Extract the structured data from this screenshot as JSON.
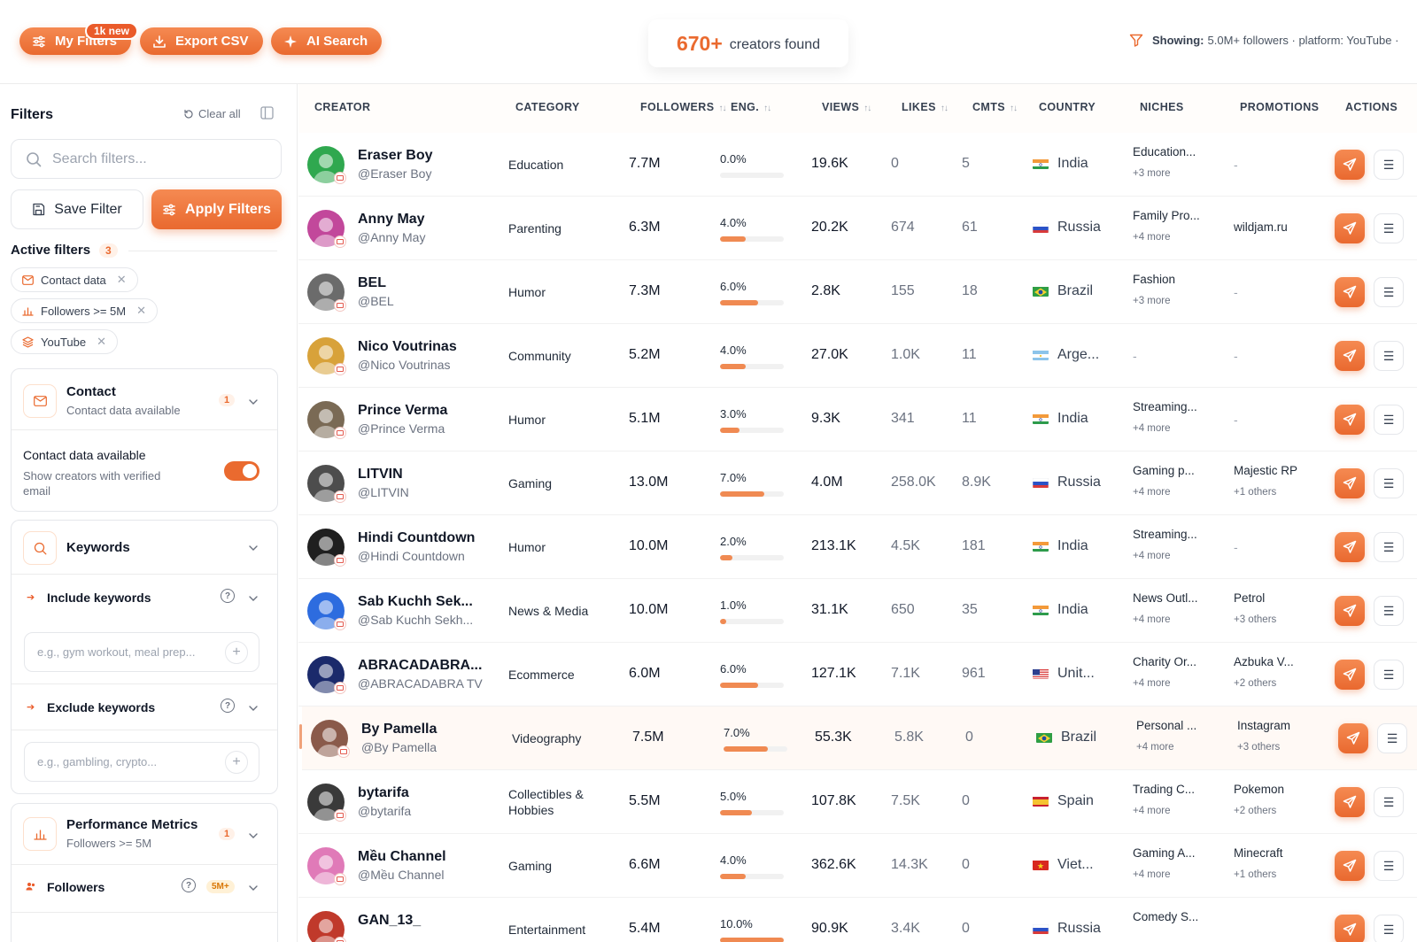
{
  "toolbar": {
    "my_filters_label": "My Filters",
    "new_badge": "1k new",
    "export_label": "Export CSV",
    "ai_search_label": "AI Search"
  },
  "summary": {
    "count": "670+",
    "label": "creators found",
    "showing_label": "Showing:",
    "showing_value": "5.0M+ followers · platform: YouTube ·"
  },
  "sidebar": {
    "title": "Filters",
    "clear_all": "Clear all",
    "search_placeholder": "Search filters...",
    "save_filter": "Save Filter",
    "apply_filters": "Apply Filters",
    "active_filters_label": "Active filters",
    "active_filters_count": "3",
    "chips": [
      "Contact data",
      "Followers >= 5M",
      "YouTube"
    ],
    "contact": {
      "title": "Contact",
      "subtitle": "Contact data available",
      "badge": "1",
      "toggle_title": "Contact data available",
      "toggle_desc": "Show creators with verified email",
      "toggle_on": true
    },
    "keywords": {
      "title": "Keywords",
      "include_label": "Include keywords",
      "include_placeholder": "e.g., gym workout, meal prep...",
      "exclude_label": "Exclude keywords",
      "exclude_placeholder": "e.g., gambling, crypto..."
    },
    "performance": {
      "title": "Performance Metrics",
      "subtitle": "Followers >= 5M",
      "badge": "1",
      "followers_label": "Followers",
      "followers_badge": "5M+"
    }
  },
  "table": {
    "columns": {
      "creator": "CREATOR",
      "category": "CATEGORY",
      "followers": "FOLLOWERS",
      "eng": "ENG.",
      "views": "VIEWS",
      "likes": "LIKES",
      "cmts": "CMTS",
      "country": "COUNTRY",
      "niches": "NICHES",
      "promotions": "PROMOTIONS",
      "actions": "ACTIONS"
    },
    "accent": "#ea6a2f",
    "rows": [
      {
        "name": "Eraser Boy",
        "handle": "@Eraser Boy",
        "category": "Education",
        "followers": "7.7M",
        "eng": "0.0%",
        "eng_value": 0.0,
        "views": "19.6K",
        "likes": "0",
        "cmts": "5",
        "country": "India",
        "flag": "in",
        "niche": "Education...",
        "niche_more": "+3 more",
        "promo": "-",
        "promo_more": "",
        "avatar_color": "#2fa84f"
      },
      {
        "name": "Anny May",
        "handle": "@Anny May",
        "category": "Parenting",
        "followers": "6.3M",
        "eng": "4.0%",
        "eng_value": 4.0,
        "views": "20.2K",
        "likes": "674",
        "cmts": "61",
        "country": "Russia",
        "flag": "ru",
        "niche": "Family Pro...",
        "niche_more": "+4 more",
        "promo": "wildjam.ru",
        "promo_more": "",
        "avatar_color": "#c2489b"
      },
      {
        "name": "BEL",
        "handle": "@BEL",
        "category": "Humor",
        "followers": "7.3M",
        "eng": "6.0%",
        "eng_value": 6.0,
        "views": "2.8K",
        "likes": "155",
        "cmts": "18",
        "country": "Brazil",
        "flag": "br",
        "niche": "Fashion",
        "niche_more": "+3 more",
        "promo": "-",
        "promo_more": "",
        "avatar_color": "#6b6b6b"
      },
      {
        "name": "Nico Voutrinas",
        "handle": "@Nico Voutrinas",
        "category": "Community",
        "followers": "5.2M",
        "eng": "4.0%",
        "eng_value": 4.0,
        "views": "27.0K",
        "likes": "1.0K",
        "cmts": "11",
        "country": "Arge...",
        "flag": "ar",
        "niche": "-",
        "niche_more": "",
        "promo": "-",
        "promo_more": "",
        "avatar_color": "#d8a23a"
      },
      {
        "name": "Prince Verma",
        "handle": "@Prince Verma",
        "category": "Humor",
        "followers": "5.1M",
        "eng": "3.0%",
        "eng_value": 3.0,
        "views": "9.3K",
        "likes": "341",
        "cmts": "11",
        "country": "India",
        "flag": "in",
        "niche": "Streaming...",
        "niche_more": "+4 more",
        "promo": "-",
        "promo_more": "",
        "avatar_color": "#7a6a55"
      },
      {
        "name": "LITVIN",
        "handle": "@LITVIN",
        "category": "Gaming",
        "followers": "13.0M",
        "eng": "7.0%",
        "eng_value": 7.0,
        "views": "4.0M",
        "likes": "258.0K",
        "cmts": "8.9K",
        "country": "Russia",
        "flag": "ru",
        "niche": "Gaming p...",
        "niche_more": "+4 more",
        "promo": "Majestic RP",
        "promo_more": "+1 others",
        "avatar_color": "#4d4d4d"
      },
      {
        "name": "Hindi Countdown",
        "handle": "@Hindi Countdown",
        "category": "Humor",
        "followers": "10.0M",
        "eng": "2.0%",
        "eng_value": 2.0,
        "views": "213.1K",
        "likes": "4.5K",
        "cmts": "181",
        "country": "India",
        "flag": "in",
        "niche": "Streaming...",
        "niche_more": "+4 more",
        "promo": "-",
        "promo_more": "",
        "avatar_color": "#1f1f1f"
      },
      {
        "name": "Sab Kuchh Sek...",
        "handle": "@Sab Kuchh Sekh...",
        "category": "News & Media",
        "followers": "10.0M",
        "eng": "1.0%",
        "eng_value": 1.0,
        "views": "31.1K",
        "likes": "650",
        "cmts": "35",
        "country": "India",
        "flag": "in",
        "niche": "News Outl...",
        "niche_more": "+4 more",
        "promo": "Petrol",
        "promo_more": "+3 others",
        "avatar_color": "#2d6cdf"
      },
      {
        "name": "ABRACADABRA...",
        "handle": "@ABRACADABRA TV",
        "category": "Ecommerce",
        "followers": "6.0M",
        "eng": "6.0%",
        "eng_value": 6.0,
        "views": "127.1K",
        "likes": "7.1K",
        "cmts": "961",
        "country": "Unit...",
        "flag": "us",
        "niche": "Charity Or...",
        "niche_more": "+4 more",
        "promo": "Azbuka V...",
        "promo_more": "+2 others",
        "avatar_color": "#1b2a6b"
      },
      {
        "name": "By Pamella",
        "handle": "@By Pamella",
        "category": "Videography",
        "followers": "7.5M",
        "eng": "7.0%",
        "eng_value": 7.0,
        "views": "55.3K",
        "likes": "5.8K",
        "cmts": "0",
        "country": "Brazil",
        "flag": "br",
        "niche": "Personal ...",
        "niche_more": "+4 more",
        "promo": "Instagram",
        "promo_more": "+3 others",
        "avatar_color": "#8a5a4a"
      },
      {
        "name": "bytarifa",
        "handle": "@bytarifa",
        "category": "Collectibles & Hobbies",
        "followers": "5.5M",
        "eng": "5.0%",
        "eng_value": 5.0,
        "views": "107.8K",
        "likes": "7.5K",
        "cmts": "0",
        "country": "Spain",
        "flag": "es",
        "niche": "Trading C...",
        "niche_more": "+4 more",
        "promo": "Pokemon",
        "promo_more": "+2 others",
        "avatar_color": "#3a3a3a"
      },
      {
        "name": "Mều Channel",
        "handle": "@Mều Channel",
        "category": "Gaming",
        "followers": "6.6M",
        "eng": "4.0%",
        "eng_value": 4.0,
        "views": "362.6K",
        "likes": "14.3K",
        "cmts": "0",
        "country": "Viet...",
        "flag": "vn",
        "niche": "Gaming A...",
        "niche_more": "+4 more",
        "promo": "Minecraft",
        "promo_more": "+1 others",
        "avatar_color": "#e07ab8"
      },
      {
        "name": "GAN_13_",
        "handle": "",
        "category": "Entertainment",
        "followers": "5.4M",
        "eng": "10.0%",
        "eng_value": 10.0,
        "views": "90.9K",
        "likes": "3.4K",
        "cmts": "0",
        "country": "Russia",
        "flag": "ru",
        "niche": "Comedy S...",
        "niche_more": "",
        "promo": "",
        "promo_more": "",
        "avatar_color": "#c0392b"
      }
    ]
  }
}
